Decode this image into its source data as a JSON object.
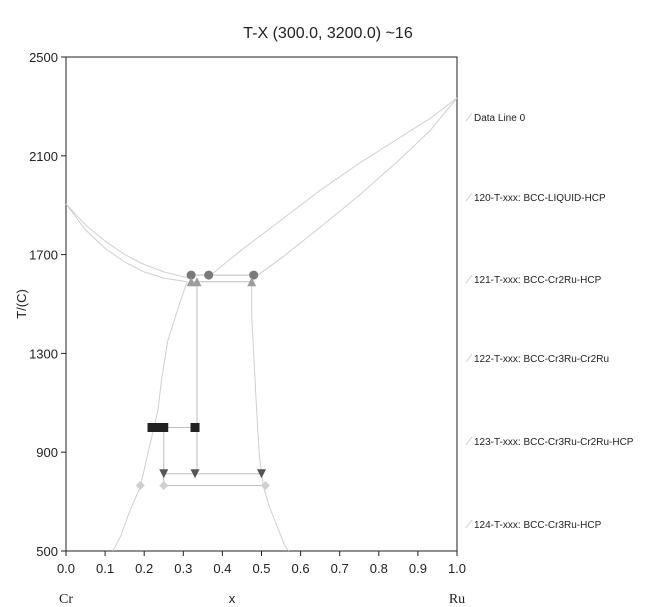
{
  "chart_data": {
    "type": "line",
    "title": "T-X (300.0, 3200.0) ~16",
    "xlabel": "x",
    "ylabel": "T/(C)",
    "xlim": [
      0.0,
      1.0
    ],
    "ylim": [
      500,
      2500
    ],
    "x_ticks": [
      "0.0",
      "0.1",
      "0.2",
      "0.3",
      "0.4",
      "0.5",
      "0.6",
      "0.7",
      "0.8",
      "0.9",
      "1.0"
    ],
    "y_ticks": [
      "500",
      "900",
      "1300",
      "1700",
      "2100",
      "2500"
    ],
    "end_labels": {
      "left": "Cr",
      "right": "Ru"
    },
    "grid": false,
    "legend_position": "right",
    "legend": [
      "Data Line 0",
      "120-T-xxx: BCC-LIQUID-HCP",
      "121-T-xxx: BCC-Cr2Ru-HCP",
      "122-T-xxx: BCC-Cr3Ru-Cr2Ru",
      "123-T-xxx: BCC-Cr3Ru-Cr2Ru-HCP",
      "124-T-xxx: BCC-Cr3Ru-HCP"
    ],
    "colors": {
      "curve": "#cfcfcf",
      "tie_line": "#bdbdbd",
      "circle": "#7a7a7a",
      "triangle_up": "#9c9c9c",
      "square": "#222222",
      "triangle_down": "#555555",
      "diamond": "#cfcfcf"
    },
    "curves": [
      {
        "name": "liquidus-cr",
        "points": [
          [
            0.0,
            1905
          ],
          [
            0.05,
            1820
          ],
          [
            0.1,
            1755
          ],
          [
            0.15,
            1700
          ],
          [
            0.2,
            1660
          ],
          [
            0.25,
            1630
          ],
          [
            0.3,
            1610
          ],
          [
            0.32,
            1605
          ]
        ]
      },
      {
        "name": "solidus-cr",
        "points": [
          [
            0.0,
            1905
          ],
          [
            0.05,
            1800
          ],
          [
            0.1,
            1725
          ],
          [
            0.15,
            1670
          ],
          [
            0.2,
            1630
          ],
          [
            0.25,
            1605
          ],
          [
            0.31,
            1590
          ]
        ]
      },
      {
        "name": "liquidus-ru",
        "points": [
          [
            0.36,
            1605
          ],
          [
            0.45,
            1720
          ],
          [
            0.55,
            1840
          ],
          [
            0.65,
            1960
          ],
          [
            0.75,
            2070
          ],
          [
            0.85,
            2170
          ],
          [
            0.93,
            2250
          ],
          [
            1.0,
            2334
          ]
        ]
      },
      {
        "name": "solidus-ru",
        "points": [
          [
            0.48,
            1605
          ],
          [
            0.55,
            1685
          ],
          [
            0.65,
            1810
          ],
          [
            0.75,
            1940
          ],
          [
            0.85,
            2080
          ],
          [
            0.93,
            2200
          ],
          [
            1.0,
            2334
          ]
        ]
      },
      {
        "name": "bcc-solvus",
        "points": [
          [
            0.31,
            1590
          ],
          [
            0.29,
            1500
          ],
          [
            0.26,
            1350
          ],
          [
            0.245,
            1200
          ],
          [
            0.235,
            1070
          ],
          [
            0.225,
            1000
          ],
          [
            0.21,
            900
          ],
          [
            0.19,
            760
          ],
          [
            0.16,
            650
          ],
          [
            0.14,
            560
          ],
          [
            0.12,
            500
          ]
        ]
      },
      {
        "name": "hcp-solvus",
        "points": [
          [
            0.475,
            1590
          ],
          [
            0.475,
            1450
          ],
          [
            0.48,
            1300
          ],
          [
            0.485,
            1150
          ],
          [
            0.49,
            1000
          ],
          [
            0.495,
            880
          ],
          [
            0.505,
            760
          ],
          [
            0.52,
            680
          ],
          [
            0.54,
            600
          ],
          [
            0.56,
            520
          ],
          [
            0.57,
            500
          ]
        ]
      }
    ],
    "tie_lines": [
      {
        "y": 1617,
        "x": [
          0.32,
          0.48
        ]
      },
      {
        "y": 1590,
        "x": [
          0.325,
          0.475
        ]
      },
      {
        "y": 1000,
        "x": [
          0.22,
          0.33
        ]
      },
      {
        "y": 813,
        "x": [
          0.25,
          0.5
        ]
      },
      {
        "y": 765,
        "x": [
          0.25,
          0.51
        ]
      }
    ],
    "vertical_lines": [
      {
        "x": 0.335,
        "y": [
          813,
          1590
        ]
      },
      {
        "x": 0.25,
        "y": [
          765,
          1000
        ]
      }
    ],
    "markers": [
      {
        "shape": "circle",
        "points": [
          [
            0.32,
            1617
          ],
          [
            0.365,
            1617
          ],
          [
            0.48,
            1617
          ]
        ]
      },
      {
        "shape": "triangle_up",
        "points": [
          [
            0.32,
            1590
          ],
          [
            0.335,
            1590
          ],
          [
            0.475,
            1590
          ]
        ]
      },
      {
        "shape": "square",
        "points": [
          [
            0.22,
            1000
          ],
          [
            0.235,
            1000
          ],
          [
            0.25,
            1000
          ],
          [
            0.33,
            1000
          ]
        ]
      },
      {
        "shape": "triangle_down",
        "points": [
          [
            0.25,
            813
          ],
          [
            0.33,
            813
          ],
          [
            0.5,
            813
          ]
        ]
      },
      {
        "shape": "diamond",
        "points": [
          [
            0.19,
            765
          ],
          [
            0.25,
            765
          ],
          [
            0.51,
            765
          ]
        ]
      }
    ]
  }
}
